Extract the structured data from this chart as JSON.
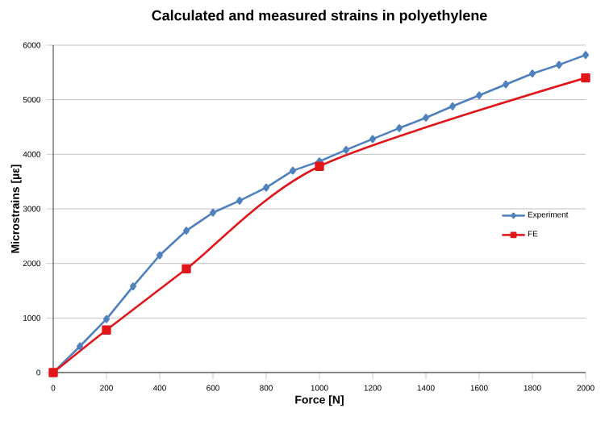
{
  "chart_data": {
    "type": "line",
    "title": "Calculated and measured strains in polyethylene",
    "xlabel": "Force [N]",
    "ylabel": "Microstrains [µε]",
    "xlim": [
      0,
      2000
    ],
    "xticks": [
      0,
      200,
      400,
      600,
      800,
      1000,
      1200,
      1400,
      1600,
      1800,
      2000
    ],
    "ylim": [
      0,
      6000
    ],
    "yticks": [
      0,
      1000,
      2000,
      3000,
      4000,
      5000,
      6000
    ],
    "grid": "y",
    "legend": "right",
    "series": [
      {
        "name": "Experiment",
        "color": "#4f81bd",
        "marker": "diamond",
        "x": [
          0,
          100,
          200,
          300,
          400,
          500,
          600,
          700,
          800,
          900,
          1000,
          1100,
          1200,
          1300,
          1400,
          1500,
          1600,
          1700,
          1800,
          1900,
          2000
        ],
        "values": [
          0,
          480,
          980,
          1580,
          2150,
          2600,
          2930,
          3150,
          3390,
          3700,
          3870,
          4080,
          4280,
          4480,
          4670,
          4880,
          5080,
          5280,
          5480,
          5640,
          5820
        ]
      },
      {
        "name": "FE",
        "color": "#e0161b",
        "marker": "square",
        "x": [
          0,
          200,
          500,
          1000,
          2000
        ],
        "values": [
          0,
          780,
          1900,
          3780,
          5400
        ]
      }
    ]
  }
}
